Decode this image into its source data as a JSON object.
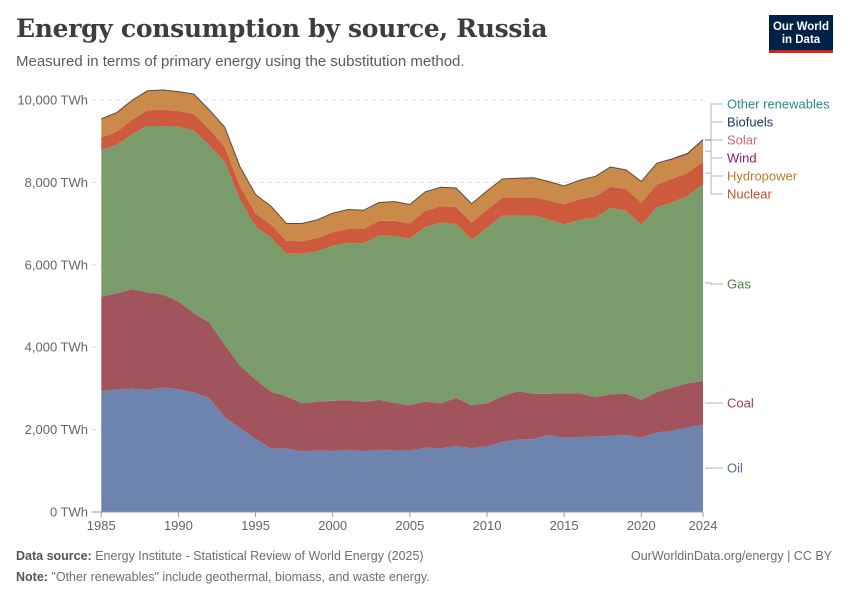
{
  "header": {
    "title": "Energy consumption by source, Russia",
    "subtitle": "Measured in terms of primary energy using the substitution method."
  },
  "logo": {
    "line1": "Our World",
    "line2": "in Data",
    "bg": "#002147",
    "accent": "#ce261e"
  },
  "footer": {
    "source_label": "Data source:",
    "source_text": " Energy Institute - Statistical Review of World Energy (2025)",
    "note_label": "Note:",
    "note_text": " \"Other renewables\" include geothermal, biomass, and waste energy.",
    "credit": "OurWorldinData.org/energy | CC BY"
  },
  "chart_data": {
    "type": "area",
    "stacked": true,
    "ylim": [
      0,
      10000
    ],
    "yticks": [
      0,
      2000,
      4000,
      6000,
      8000,
      10000
    ],
    "ytick_labels": [
      "0 TWh",
      "2,000 TWh",
      "4,000 TWh",
      "6,000 TWh",
      "8,000 TWh",
      "10,000 TWh"
    ],
    "xlim": [
      1985,
      2024
    ],
    "xticks": [
      1985,
      1990,
      1995,
      2000,
      2005,
      2010,
      2015,
      2020,
      2024
    ],
    "x": [
      1985,
      1986,
      1987,
      1988,
      1989,
      1990,
      1991,
      1992,
      1993,
      1994,
      1995,
      1996,
      1997,
      1998,
      1999,
      2000,
      2001,
      2002,
      2003,
      2004,
      2005,
      2006,
      2007,
      2008,
      2009,
      2010,
      2011,
      2012,
      2013,
      2014,
      2015,
      2016,
      2017,
      2018,
      2019,
      2020,
      2021,
      2022,
      2023,
      2024
    ],
    "grid": true,
    "legend_placement": "right, inline labels",
    "series": [
      {
        "name": "Oil",
        "color": "#6d84af",
        "values": [
          2930,
          2970,
          2990,
          2970,
          3020,
          2980,
          2900,
          2770,
          2300,
          2030,
          1780,
          1540,
          1540,
          1470,
          1490,
          1480,
          1510,
          1470,
          1510,
          1490,
          1490,
          1560,
          1550,
          1600,
          1550,
          1590,
          1700,
          1760,
          1770,
          1870,
          1800,
          1820,
          1830,
          1850,
          1870,
          1800,
          1930,
          1970,
          2050,
          2120
        ]
      },
      {
        "name": "Coal",
        "color": "#a2545c",
        "values": [
          2300,
          2340,
          2420,
          2360,
          2260,
          2130,
          1930,
          1830,
          1760,
          1520,
          1430,
          1380,
          1270,
          1170,
          1190,
          1220,
          1200,
          1200,
          1210,
          1160,
          1100,
          1120,
          1090,
          1170,
          1040,
          1050,
          1110,
          1170,
          1100,
          1000,
          1080,
          1060,
          960,
          1010,
          1000,
          920,
          980,
          1050,
          1080,
          1050
        ]
      },
      {
        "name": "Gas",
        "color": "#7a9c6a",
        "values": [
          3560,
          3600,
          3760,
          4040,
          4090,
          4240,
          4430,
          4300,
          4440,
          4030,
          3720,
          3740,
          3460,
          3630,
          3650,
          3760,
          3820,
          3850,
          3990,
          4050,
          4040,
          4240,
          4380,
          4220,
          4020,
          4260,
          4380,
          4260,
          4330,
          4230,
          4100,
          4210,
          4350,
          4520,
          4440,
          4250,
          4480,
          4500,
          4540,
          4780
        ]
      },
      {
        "name": "Nuclear",
        "color": "#ce5a3e",
        "values": [
          300,
          320,
          350,
          380,
          390,
          380,
          400,
          390,
          360,
          320,
          310,
          320,
          310,
          300,
          320,
          330,
          340,
          350,
          360,
          370,
          380,
          390,
          400,
          410,
          420,
          430,
          450,
          450,
          440,
          460,
          490,
          500,
          520,
          510,
          530,
          540,
          560,
          570,
          560,
          550
        ]
      },
      {
        "name": "Hydropower",
        "color": "#c98a4a",
        "values": [
          450,
          460,
          470,
          470,
          480,
          470,
          480,
          470,
          480,
          470,
          460,
          440,
          420,
          430,
          440,
          460,
          470,
          450,
          440,
          460,
          450,
          460,
          460,
          460,
          450,
          460,
          440,
          460,
          470,
          460,
          440,
          460,
          480,
          480,
          460,
          510,
          500,
          460,
          450,
          510
        ]
      },
      {
        "name": "Wind",
        "color": "#8d1d6a",
        "values": [
          0,
          0,
          0,
          0,
          0,
          0,
          0,
          0,
          0,
          0,
          0,
          0,
          0,
          0,
          0,
          0,
          0,
          0,
          0,
          0,
          0,
          0,
          0,
          0,
          0,
          0,
          0,
          0,
          0,
          0,
          0,
          0,
          0,
          0,
          0,
          0,
          5,
          10,
          12,
          14
        ]
      },
      {
        "name": "Solar",
        "color": "#d2667a",
        "values": [
          0,
          0,
          0,
          0,
          0,
          0,
          0,
          0,
          0,
          0,
          0,
          0,
          0,
          0,
          0,
          0,
          0,
          0,
          0,
          0,
          0,
          0,
          0,
          0,
          0,
          0,
          0,
          0,
          0,
          0,
          0,
          0,
          0,
          0,
          0,
          0,
          5,
          8,
          10,
          12
        ]
      },
      {
        "name": "Biofuels",
        "color": "#1a3b67",
        "values": [
          0,
          0,
          0,
          0,
          0,
          0,
          0,
          0,
          0,
          0,
          0,
          0,
          0,
          0,
          0,
          0,
          0,
          0,
          0,
          0,
          0,
          0,
          0,
          0,
          0,
          0,
          0,
          0,
          0,
          0,
          0,
          0,
          0,
          0,
          0,
          0,
          0,
          0,
          0,
          0
        ]
      },
      {
        "name": "Other renewables",
        "color": "#4a8f8f",
        "values": [
          3,
          3,
          3,
          3,
          3,
          3,
          3,
          3,
          3,
          3,
          3,
          3,
          3,
          3,
          3,
          3,
          3,
          3,
          3,
          3,
          3,
          3,
          3,
          3,
          3,
          3,
          3,
          3,
          3,
          3,
          3,
          3,
          3,
          3,
          3,
          3,
          3,
          3,
          3,
          3
        ]
      }
    ],
    "labels": [
      {
        "name": "Other renewables",
        "color": "#2a8a86"
      },
      {
        "name": "Biofuels",
        "color": "#1a3b67"
      },
      {
        "name": "Solar",
        "color": "#d2667a"
      },
      {
        "name": "Wind",
        "color": "#8d1d6a"
      },
      {
        "name": "Hydropower",
        "color": "#c07a2c"
      },
      {
        "name": "Nuclear",
        "color": "#c0502f"
      },
      {
        "name": "Gas",
        "color": "#5e7d4a"
      },
      {
        "name": "Coal",
        "color": "#9a3e48"
      },
      {
        "name": "Oil",
        "color": "#4f6a9a"
      }
    ]
  }
}
